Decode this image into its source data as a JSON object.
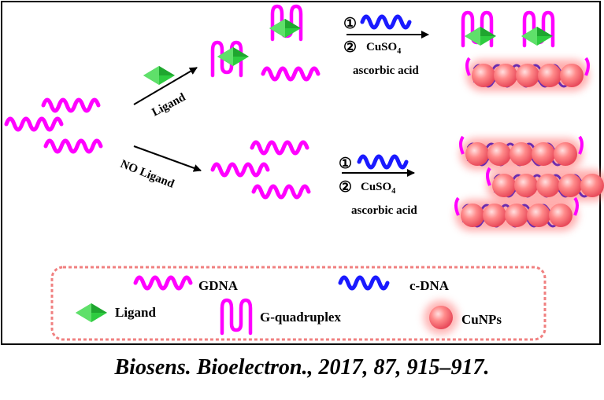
{
  "labels": {
    "ligand_arrow": "Ligand",
    "no_ligand_arrow": "NO Ligand",
    "step1_marker": "①",
    "step2_marker": "②",
    "cuso4_text": "CuSO",
    "cuso4_subscript": "4",
    "ascorbic_acid": "ascorbic acid"
  },
  "legend": {
    "gdna": "GDNA",
    "cdna": "c-DNA",
    "ligand": "Ligand",
    "g_quadruplex": "G-quadruplex",
    "cunps": "CuNPs"
  },
  "citation": "Biosens. Bioelectron., 2017, 87, 915–917.",
  "colors": {
    "gdna": "#ff00ff",
    "cdna": "#1a1aff",
    "ligand": "#2ecc40",
    "cunps": "#ff7f7f",
    "legend_border": "#f08080",
    "duplex_stripe": "#6a2cb0"
  },
  "icons": {
    "gdna": "magenta-wave",
    "cdna": "blue-wave",
    "ligand": "green-diamond",
    "g_quadruplex": "magenta-loop",
    "cunps": "red-sphere"
  }
}
